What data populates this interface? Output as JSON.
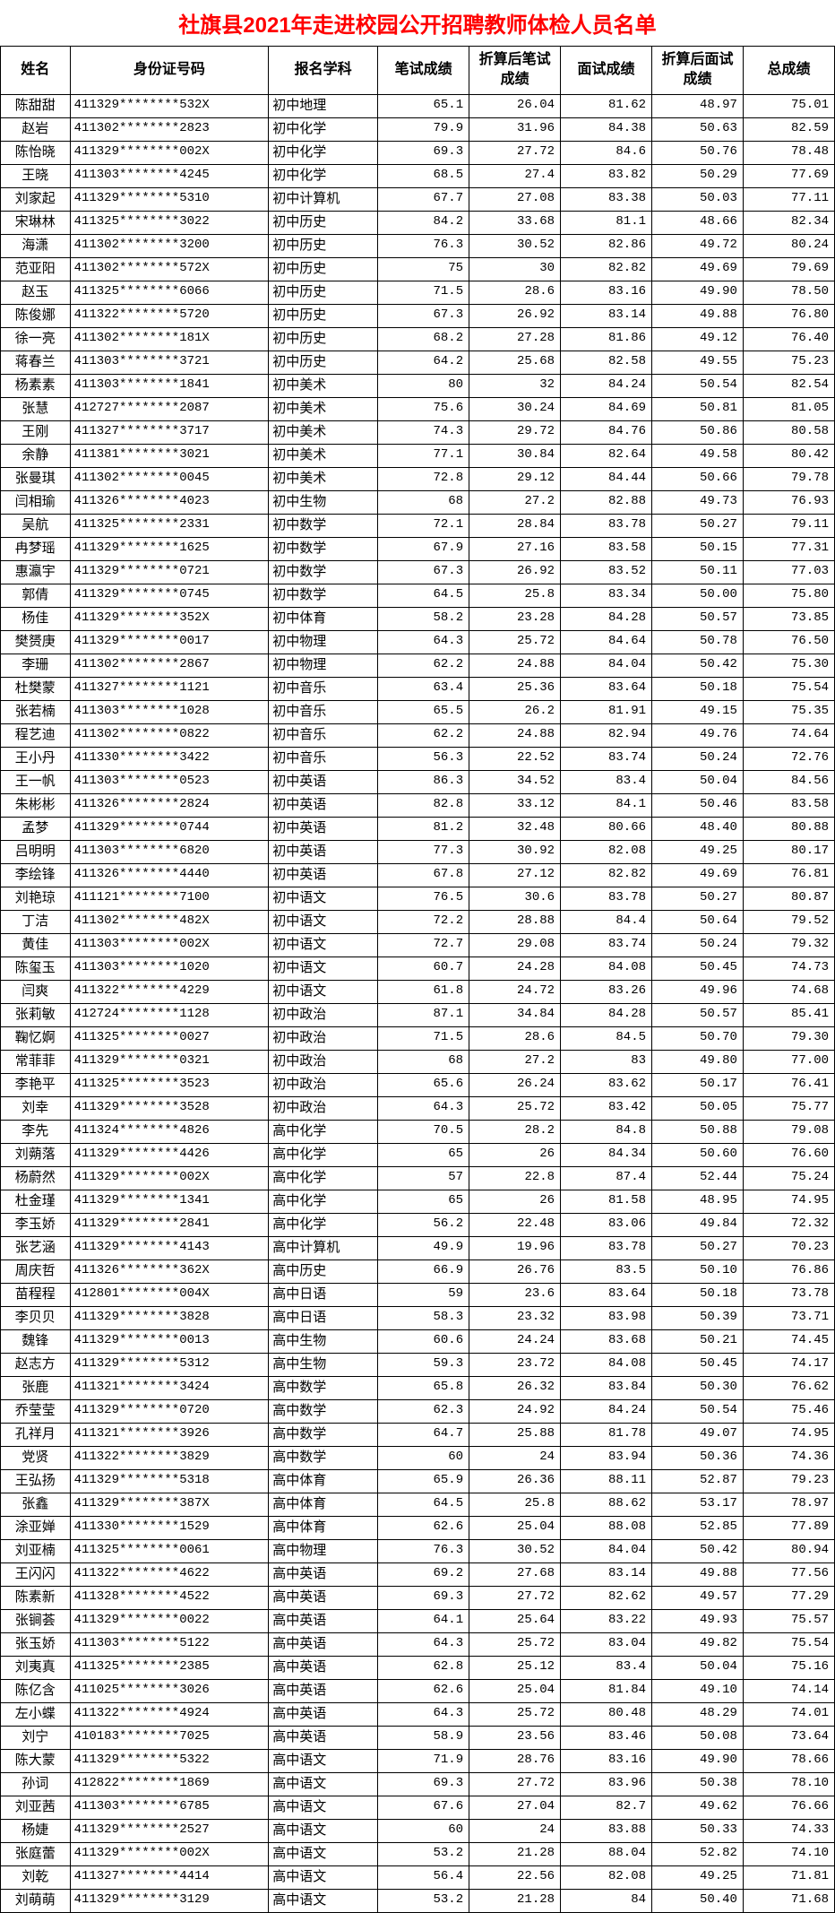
{
  "title": "社旗县2021年走进校园公开招聘教师体检人员名单",
  "columns": [
    "姓名",
    "身份证号码",
    "报名学科",
    "笔试成绩",
    "折算后笔试成绩",
    "面试成绩",
    "折算后面试成绩",
    "总成绩"
  ],
  "rows": [
    [
      "陈甜甜",
      "411329********532X",
      "初中地理",
      "65.1",
      "26.04",
      "81.62",
      "48.97",
      "75.01"
    ],
    [
      "赵岩",
      "411302********2823",
      "初中化学",
      "79.9",
      "31.96",
      "84.38",
      "50.63",
      "82.59"
    ],
    [
      "陈怡晓",
      "411329********002X",
      "初中化学",
      "69.3",
      "27.72",
      "84.6",
      "50.76",
      "78.48"
    ],
    [
      "王晓",
      "411303********4245",
      "初中化学",
      "68.5",
      "27.4",
      "83.82",
      "50.29",
      "77.69"
    ],
    [
      "刘家起",
      "411329********5310",
      "初中计算机",
      "67.7",
      "27.08",
      "83.38",
      "50.03",
      "77.11"
    ],
    [
      "宋琳林",
      "411325********3022",
      "初中历史",
      "84.2",
      "33.68",
      "81.1",
      "48.66",
      "82.34"
    ],
    [
      "海潇",
      "411302********3200",
      "初中历史",
      "76.3",
      "30.52",
      "82.86",
      "49.72",
      "80.24"
    ],
    [
      "范亚阳",
      "411302********572X",
      "初中历史",
      "75",
      "30",
      "82.82",
      "49.69",
      "79.69"
    ],
    [
      "赵玉",
      "411325********6066",
      "初中历史",
      "71.5",
      "28.6",
      "83.16",
      "49.90",
      "78.50"
    ],
    [
      "陈俊娜",
      "411322********5720",
      "初中历史",
      "67.3",
      "26.92",
      "83.14",
      "49.88",
      "76.80"
    ],
    [
      "徐一亮",
      "411302********181X",
      "初中历史",
      "68.2",
      "27.28",
      "81.86",
      "49.12",
      "76.40"
    ],
    [
      "蒋春兰",
      "411303********3721",
      "初中历史",
      "64.2",
      "25.68",
      "82.58",
      "49.55",
      "75.23"
    ],
    [
      "杨素素",
      "411303********1841",
      "初中美术",
      "80",
      "32",
      "84.24",
      "50.54",
      "82.54"
    ],
    [
      "张慧",
      "412727********2087",
      "初中美术",
      "75.6",
      "30.24",
      "84.69",
      "50.81",
      "81.05"
    ],
    [
      "王刚",
      "411327********3717",
      "初中美术",
      "74.3",
      "29.72",
      "84.76",
      "50.86",
      "80.58"
    ],
    [
      "余静",
      "411381********3021",
      "初中美术",
      "77.1",
      "30.84",
      "82.64",
      "49.58",
      "80.42"
    ],
    [
      "张曼琪",
      "411302********0045",
      "初中美术",
      "72.8",
      "29.12",
      "84.44",
      "50.66",
      "79.78"
    ],
    [
      "闫相瑜",
      "411326********4023",
      "初中生物",
      "68",
      "27.2",
      "82.88",
      "49.73",
      "76.93"
    ],
    [
      "吴航",
      "411325********2331",
      "初中数学",
      "72.1",
      "28.84",
      "83.78",
      "50.27",
      "79.11"
    ],
    [
      "冉梦瑶",
      "411329********1625",
      "初中数学",
      "67.9",
      "27.16",
      "83.58",
      "50.15",
      "77.31"
    ],
    [
      "惠瀛宇",
      "411329********0721",
      "初中数学",
      "67.3",
      "26.92",
      "83.52",
      "50.11",
      "77.03"
    ],
    [
      "郭倩",
      "411329********0745",
      "初中数学",
      "64.5",
      "25.8",
      "83.34",
      "50.00",
      "75.80"
    ],
    [
      "杨佳",
      "411329********352X",
      "初中体育",
      "58.2",
      "23.28",
      "84.28",
      "50.57",
      "73.85"
    ],
    [
      "樊赟庚",
      "411329********0017",
      "初中物理",
      "64.3",
      "25.72",
      "84.64",
      "50.78",
      "76.50"
    ],
    [
      "李珊",
      "411302********2867",
      "初中物理",
      "62.2",
      "24.88",
      "84.04",
      "50.42",
      "75.30"
    ],
    [
      "杜樊蒙",
      "411327********1121",
      "初中音乐",
      "63.4",
      "25.36",
      "83.64",
      "50.18",
      "75.54"
    ],
    [
      "张若楠",
      "411303********1028",
      "初中音乐",
      "65.5",
      "26.2",
      "81.91",
      "49.15",
      "75.35"
    ],
    [
      "程艺迪",
      "411302********0822",
      "初中音乐",
      "62.2",
      "24.88",
      "82.94",
      "49.76",
      "74.64"
    ],
    [
      "王小丹",
      "411330********3422",
      "初中音乐",
      "56.3",
      "22.52",
      "83.74",
      "50.24",
      "72.76"
    ],
    [
      "王一帆",
      "411303********0523",
      "初中英语",
      "86.3",
      "34.52",
      "83.4",
      "50.04",
      "84.56"
    ],
    [
      "朱彬彬",
      "411326********2824",
      "初中英语",
      "82.8",
      "33.12",
      "84.1",
      "50.46",
      "83.58"
    ],
    [
      "孟梦",
      "411329********0744",
      "初中英语",
      "81.2",
      "32.48",
      "80.66",
      "48.40",
      "80.88"
    ],
    [
      "吕明明",
      "411303********6820",
      "初中英语",
      "77.3",
      "30.92",
      "82.08",
      "49.25",
      "80.17"
    ],
    [
      "李绘锋",
      "411326********4440",
      "初中英语",
      "67.8",
      "27.12",
      "82.82",
      "49.69",
      "76.81"
    ],
    [
      "刘艳琼",
      "411121********7100",
      "初中语文",
      "76.5",
      "30.6",
      "83.78",
      "50.27",
      "80.87"
    ],
    [
      "丁洁",
      "411302********482X",
      "初中语文",
      "72.2",
      "28.88",
      "84.4",
      "50.64",
      "79.52"
    ],
    [
      "黄佳",
      "411303********002X",
      "初中语文",
      "72.7",
      "29.08",
      "83.74",
      "50.24",
      "79.32"
    ],
    [
      "陈玺玉",
      "411303********1020",
      "初中语文",
      "60.7",
      "24.28",
      "84.08",
      "50.45",
      "74.73"
    ],
    [
      "闫爽",
      "411322********4229",
      "初中语文",
      "61.8",
      "24.72",
      "83.26",
      "49.96",
      "74.68"
    ],
    [
      "张莉敏",
      "412724********1128",
      "初中政治",
      "87.1",
      "34.84",
      "84.28",
      "50.57",
      "85.41"
    ],
    [
      "鞠忆婀",
      "411325********0027",
      "初中政治",
      "71.5",
      "28.6",
      "84.5",
      "50.70",
      "79.30"
    ],
    [
      "常菲菲",
      "411329********0321",
      "初中政治",
      "68",
      "27.2",
      "83",
      "49.80",
      "77.00"
    ],
    [
      "李艳平",
      "411325********3523",
      "初中政治",
      "65.6",
      "26.24",
      "83.62",
      "50.17",
      "76.41"
    ],
    [
      "刘幸",
      "411329********3528",
      "初中政治",
      "64.3",
      "25.72",
      "83.42",
      "50.05",
      "75.77"
    ],
    [
      "李先",
      "411324********4826",
      "高中化学",
      "70.5",
      "28.2",
      "84.8",
      "50.88",
      "79.08"
    ],
    [
      "刘蒴落",
      "411329********4426",
      "高中化学",
      "65",
      "26",
      "84.34",
      "50.60",
      "76.60"
    ],
    [
      "杨蔚然",
      "411329********002X",
      "高中化学",
      "57",
      "22.8",
      "87.4",
      "52.44",
      "75.24"
    ],
    [
      "杜金瑾",
      "411329********1341",
      "高中化学",
      "65",
      "26",
      "81.58",
      "48.95",
      "74.95"
    ],
    [
      "李玉娇",
      "411329********2841",
      "高中化学",
      "56.2",
      "22.48",
      "83.06",
      "49.84",
      "72.32"
    ],
    [
      "张艺涵",
      "411329********4143",
      "高中计算机",
      "49.9",
      "19.96",
      "83.78",
      "50.27",
      "70.23"
    ],
    [
      "周庆哲",
      "411326********362X",
      "高中历史",
      "66.9",
      "26.76",
      "83.5",
      "50.10",
      "76.86"
    ],
    [
      "苗程程",
      "412801********004X",
      "高中日语",
      "59",
      "23.6",
      "83.64",
      "50.18",
      "73.78"
    ],
    [
      "李贝贝",
      "411329********3828",
      "高中日语",
      "58.3",
      "23.32",
      "83.98",
      "50.39",
      "73.71"
    ],
    [
      "魏锋",
      "411329********0013",
      "高中生物",
      "60.6",
      "24.24",
      "83.68",
      "50.21",
      "74.45"
    ],
    [
      "赵志方",
      "411329********5312",
      "高中生物",
      "59.3",
      "23.72",
      "84.08",
      "50.45",
      "74.17"
    ],
    [
      "张鹿",
      "411321********3424",
      "高中数学",
      "65.8",
      "26.32",
      "83.84",
      "50.30",
      "76.62"
    ],
    [
      "乔莹莹",
      "411329********0720",
      "高中数学",
      "62.3",
      "24.92",
      "84.24",
      "50.54",
      "75.46"
    ],
    [
      "孔祥月",
      "411321********3926",
      "高中数学",
      "64.7",
      "25.88",
      "81.78",
      "49.07",
      "74.95"
    ],
    [
      "党贤",
      "411322********3829",
      "高中数学",
      "60",
      "24",
      "83.94",
      "50.36",
      "74.36"
    ],
    [
      "王弘扬",
      "411329********5318",
      "高中体育",
      "65.9",
      "26.36",
      "88.11",
      "52.87",
      "79.23"
    ],
    [
      "张鑫",
      "411329********387X",
      "高中体育",
      "64.5",
      "25.8",
      "88.62",
      "53.17",
      "78.97"
    ],
    [
      "涂亚婵",
      "411330********1529",
      "高中体育",
      "62.6",
      "25.04",
      "88.08",
      "52.85",
      "77.89"
    ],
    [
      "刘亚楠",
      "411325********0061",
      "高中物理",
      "76.3",
      "30.52",
      "84.04",
      "50.42",
      "80.94"
    ],
    [
      "王闪闪",
      "411322********4622",
      "高中英语",
      "69.2",
      "27.68",
      "83.14",
      "49.88",
      "77.56"
    ],
    [
      "陈素新",
      "411328********4522",
      "高中英语",
      "69.3",
      "27.72",
      "82.62",
      "49.57",
      "77.29"
    ],
    [
      "张锏荟",
      "411329********0022",
      "高中英语",
      "64.1",
      "25.64",
      "83.22",
      "49.93",
      "75.57"
    ],
    [
      "张玉娇",
      "411303********5122",
      "高中英语",
      "64.3",
      "25.72",
      "83.04",
      "49.82",
      "75.54"
    ],
    [
      "刘夷真",
      "411325********2385",
      "高中英语",
      "62.8",
      "25.12",
      "83.4",
      "50.04",
      "75.16"
    ],
    [
      "陈亿含",
      "411025********3026",
      "高中英语",
      "62.6",
      "25.04",
      "81.84",
      "49.10",
      "74.14"
    ],
    [
      "左小蝶",
      "411322********4924",
      "高中英语",
      "64.3",
      "25.72",
      "80.48",
      "48.29",
      "74.01"
    ],
    [
      "刘宁",
      "410183********7025",
      "高中英语",
      "58.9",
      "23.56",
      "83.46",
      "50.08",
      "73.64"
    ],
    [
      "陈大蒙",
      "411329********5322",
      "高中语文",
      "71.9",
      "28.76",
      "83.16",
      "49.90",
      "78.66"
    ],
    [
      "孙词",
      "412822********1869",
      "高中语文",
      "69.3",
      "27.72",
      "83.96",
      "50.38",
      "78.10"
    ],
    [
      "刘亚茜",
      "411303********6785",
      "高中语文",
      "67.6",
      "27.04",
      "82.7",
      "49.62",
      "76.66"
    ],
    [
      "杨婕",
      "411329********2527",
      "高中语文",
      "60",
      "24",
      "83.88",
      "50.33",
      "74.33"
    ],
    [
      "张庭蕾",
      "411329********002X",
      "高中语文",
      "53.2",
      "21.28",
      "88.04",
      "52.82",
      "74.10"
    ],
    [
      "刘乾",
      "411327********4414",
      "高中语文",
      "56.4",
      "22.56",
      "82.08",
      "49.25",
      "71.81"
    ],
    [
      "刘萌萌",
      "411329********3129",
      "高中语文",
      "53.2",
      "21.28",
      "84",
      "50.40",
      "71.68"
    ]
  ]
}
